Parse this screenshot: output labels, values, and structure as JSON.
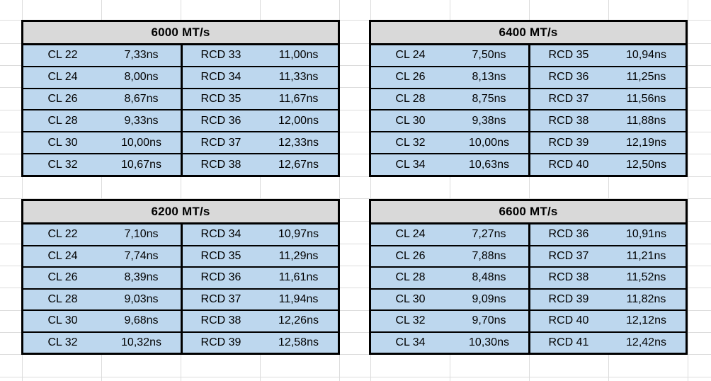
{
  "sheet": {
    "background": "#ffffff",
    "gridline_color": "#dcdcdc",
    "table_border_color": "#000000",
    "header_fill": "#d9d9d9",
    "cell_fill": "#bdd7ee",
    "text_color": "#000000"
  },
  "tables": [
    {
      "title": "6000 MT/s",
      "rows": [
        {
          "cl": "CL 22",
          "cl_ns": "7,33ns",
          "rcd": "RCD 33",
          "rcd_ns": "11,00ns"
        },
        {
          "cl": "CL 24",
          "cl_ns": "8,00ns",
          "rcd": "RCD 34",
          "rcd_ns": "11,33ns"
        },
        {
          "cl": "CL 26",
          "cl_ns": "8,67ns",
          "rcd": "RCD 35",
          "rcd_ns": "11,67ns"
        },
        {
          "cl": "CL 28",
          "cl_ns": "9,33ns",
          "rcd": "RCD 36",
          "rcd_ns": "12,00ns"
        },
        {
          "cl": "CL 30",
          "cl_ns": "10,00ns",
          "rcd": "RCD 37",
          "rcd_ns": "12,33ns"
        },
        {
          "cl": "CL 32",
          "cl_ns": "10,67ns",
          "rcd": "RCD 38",
          "rcd_ns": "12,67ns"
        }
      ]
    },
    {
      "title": "6400 MT/s",
      "rows": [
        {
          "cl": "CL 24",
          "cl_ns": "7,50ns",
          "rcd": "RCD 35",
          "rcd_ns": "10,94ns"
        },
        {
          "cl": "CL 26",
          "cl_ns": "8,13ns",
          "rcd": "RCD 36",
          "rcd_ns": "11,25ns"
        },
        {
          "cl": "CL 28",
          "cl_ns": "8,75ns",
          "rcd": "RCD 37",
          "rcd_ns": "11,56ns"
        },
        {
          "cl": "CL 30",
          "cl_ns": "9,38ns",
          "rcd": "RCD 38",
          "rcd_ns": "11,88ns"
        },
        {
          "cl": "CL 32",
          "cl_ns": "10,00ns",
          "rcd": "RCD 39",
          "rcd_ns": "12,19ns"
        },
        {
          "cl": "CL 34",
          "cl_ns": "10,63ns",
          "rcd": "RCD 40",
          "rcd_ns": "12,50ns"
        }
      ]
    },
    {
      "title": "6200 MT/s",
      "rows": [
        {
          "cl": "CL 22",
          "cl_ns": "7,10ns",
          "rcd": "RCD 34",
          "rcd_ns": "10,97ns"
        },
        {
          "cl": "CL 24",
          "cl_ns": "7,74ns",
          "rcd": "RCD 35",
          "rcd_ns": "11,29ns"
        },
        {
          "cl": "CL 26",
          "cl_ns": "8,39ns",
          "rcd": "RCD 36",
          "rcd_ns": "11,61ns"
        },
        {
          "cl": "CL 28",
          "cl_ns": "9,03ns",
          "rcd": "RCD 37",
          "rcd_ns": "11,94ns"
        },
        {
          "cl": "CL 30",
          "cl_ns": "9,68ns",
          "rcd": "RCD 38",
          "rcd_ns": "12,26ns"
        },
        {
          "cl": "CL 32",
          "cl_ns": "10,32ns",
          "rcd": "RCD 39",
          "rcd_ns": "12,58ns"
        }
      ]
    },
    {
      "title": "6600 MT/s",
      "rows": [
        {
          "cl": "CL 24",
          "cl_ns": "7,27ns",
          "rcd": "RCD 36",
          "rcd_ns": "10,91ns"
        },
        {
          "cl": "CL 26",
          "cl_ns": "7,88ns",
          "rcd": "RCD 37",
          "rcd_ns": "11,21ns"
        },
        {
          "cl": "CL 28",
          "cl_ns": "8,48ns",
          "rcd": "RCD 38",
          "rcd_ns": "11,52ns"
        },
        {
          "cl": "CL 30",
          "cl_ns": "9,09ns",
          "rcd": "RCD 39",
          "rcd_ns": "11,82ns"
        },
        {
          "cl": "CL 32",
          "cl_ns": "9,70ns",
          "rcd": "RCD 40",
          "rcd_ns": "12,12ns"
        },
        {
          "cl": "CL 34",
          "cl_ns": "10,30ns",
          "rcd": "RCD 41",
          "rcd_ns": "12,42ns"
        }
      ]
    }
  ]
}
